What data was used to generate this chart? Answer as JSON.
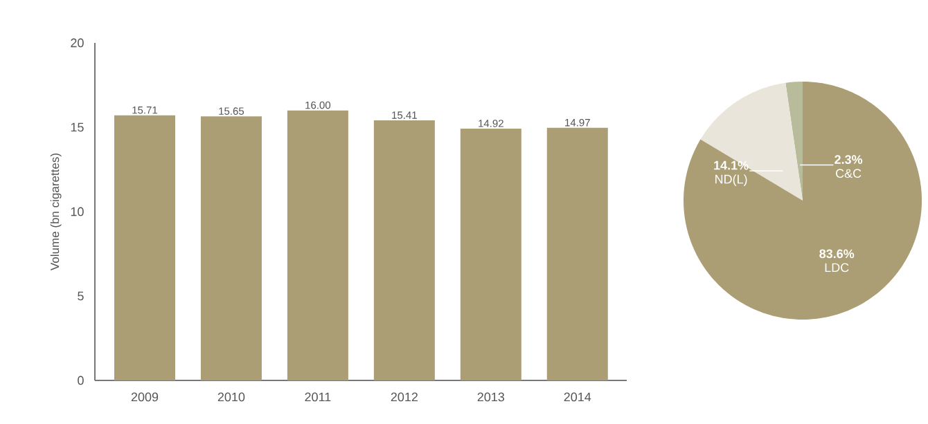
{
  "chart_data": [
    {
      "type": "bar",
      "ylabel": "Volume (bn cigarettes)",
      "categories": [
        "2009",
        "2010",
        "2011",
        "2012",
        "2013",
        "2014"
      ],
      "values": [
        15.71,
        15.65,
        16.0,
        15.41,
        14.92,
        14.97
      ],
      "value_labels": [
        "15.71",
        "15.65",
        "16.00",
        "15.41",
        "14.92",
        "14.97"
      ],
      "color": "#ab9d74",
      "ylim": [
        0,
        20
      ],
      "yticks": [
        0,
        5,
        10,
        15,
        20
      ]
    },
    {
      "type": "pie",
      "categories": [
        "C&C",
        "ND(L)",
        "LDC"
      ],
      "values": [
        2.3,
        14.1,
        83.6
      ],
      "value_labels": [
        "2.3%",
        "14.1%",
        "83.6%"
      ],
      "colors": [
        "#b8bc9b",
        "#e9e5da",
        "#ab9d74"
      ]
    }
  ]
}
